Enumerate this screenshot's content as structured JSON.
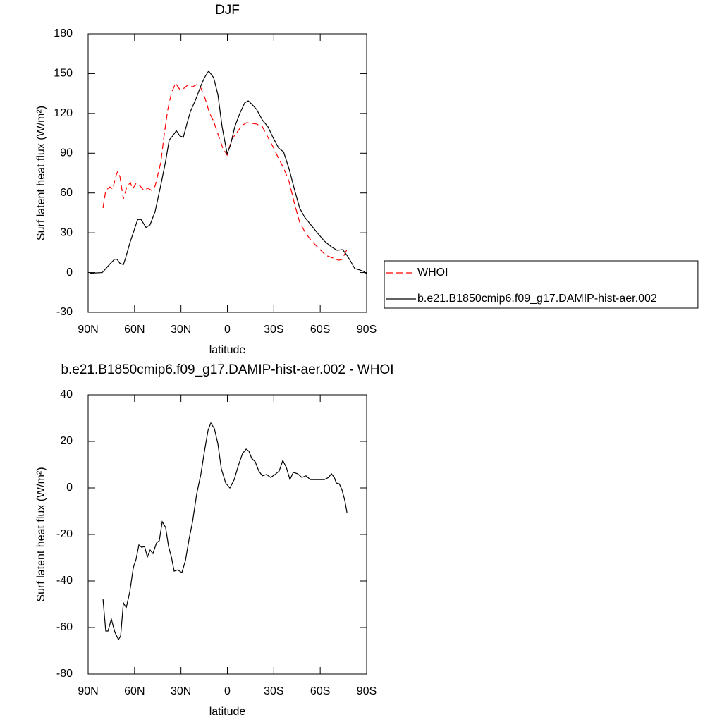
{
  "chart_data": [
    {
      "type": "line",
      "title": "DJF",
      "xlabel": "latitude",
      "ylabel": "Surf latent heat flux (W/m²)",
      "xlim": [
        90,
        -90
      ],
      "xticks": [
        {
          "value": 90,
          "label": "90N"
        },
        {
          "value": 60,
          "label": "60N"
        },
        {
          "value": 30,
          "label": "30N"
        },
        0,
        {
          "value": -30,
          "label": "30S"
        },
        {
          "value": -60,
          "label": "60S"
        },
        {
          "value": -90,
          "label": "90S"
        }
      ],
      "ylim": [
        -30,
        180
      ],
      "yticks": [
        -30,
        0,
        30,
        60,
        90,
        120,
        150,
        180
      ],
      "legend": "right",
      "series": [
        {
          "name": "WHOI",
          "color": "#ff0000",
          "style": "dashed",
          "x": [
            80.4,
            78.6,
            75.9,
            74,
            72.2,
            70.9,
            69.5,
            67.2,
            65,
            62.7,
            61.3,
            59,
            56.7,
            54,
            51.3,
            49,
            46.7,
            43,
            40.8,
            38.5,
            36.2,
            33.5,
            30.7,
            28,
            25.3,
            22.5,
            19.8,
            17.1,
            14.3,
            11.6,
            8.9,
            6.1,
            3,
            0.2,
            -2.9,
            -6.2,
            -9.4,
            -12.6,
            -15.7,
            -18.9,
            -22.6,
            -26.2,
            -29.9,
            -33.1,
            -36.3,
            -39.9,
            -43.5,
            -46.7,
            -50.4,
            -54.5,
            -59,
            -63.6,
            -68.2,
            -71.8,
            -74.1,
            -77.3
          ],
          "values": [
            48.7,
            62,
            64.6,
            63,
            72.6,
            76.3,
            72.6,
            55.6,
            64.6,
            68,
            63,
            67.3,
            65.7,
            62,
            63.6,
            62,
            65.2,
            83.2,
            104.5,
            123,
            135.3,
            142.8,
            138,
            139,
            141.7,
            140,
            141.7,
            139,
            131,
            120.5,
            114,
            104.5,
            93.9,
            88.6,
            100.8,
            105.6,
            110.9,
            113,
            112.5,
            112,
            110,
            102,
            94,
            86,
            79,
            68.4,
            51.3,
            38,
            30,
            23.7,
            18.4,
            13,
            11,
            9.3,
            9.9,
            17.3
          ]
        },
        {
          "name": "b.e21.B1850cmip6.f09_g17.DAMIP-hist-aer.002",
          "color": "#000000",
          "style": "solid",
          "x": [
            88.6,
            80.9,
            76.3,
            73,
            71.3,
            69.5,
            67.2,
            65.8,
            63.1,
            58,
            55.8,
            52.6,
            50,
            46.7,
            43,
            39.9,
            37.6,
            35.3,
            33,
            30.7,
            28.5,
            26.2,
            23.9,
            20.3,
            17.1,
            14.8,
            12.1,
            8.9,
            6.1,
            3.4,
            0.2,
            -2.1,
            -4.8,
            -8,
            -11.2,
            -13.5,
            -15.7,
            -18.9,
            -22.6,
            -26.2,
            -29.4,
            -33.1,
            -36.3,
            -39.9,
            -43.5,
            -46.7,
            -49.9,
            -53.6,
            -58.1,
            -62.7,
            -67.2,
            -70.9,
            -74.5,
            -77.3,
            -79.5,
            -82.3,
            -85.5,
            -88.2,
            -90
          ],
          "values": [
            -0.5,
            0,
            6,
            10,
            10,
            7,
            6,
            11,
            22,
            40,
            40,
            34,
            36,
            46,
            66,
            84,
            100,
            103,
            107,
            103,
            102,
            112,
            121.5,
            131,
            141,
            147,
            152,
            147,
            134,
            110,
            89.6,
            96.5,
            110,
            120,
            128,
            129.5,
            127,
            123,
            115,
            110,
            102,
            94,
            91,
            78,
            62,
            48.7,
            41.8,
            36.5,
            30,
            23.7,
            19.4,
            16.8,
            17.3,
            13,
            8.8,
            3,
            2,
            0.8,
            -0.8
          ]
        }
      ]
    },
    {
      "type": "line",
      "title": "b.e21.B1850cmip6.f09_g17.DAMIP-hist-aer.002 - WHOI",
      "xlabel": "latitude",
      "ylabel": "Surf latent heat flux (W/m²)",
      "xlim": [
        90,
        -90
      ],
      "xticks": [
        {
          "value": 90,
          "label": "90N"
        },
        {
          "value": 60,
          "label": "60N"
        },
        {
          "value": 30,
          "label": "30N"
        },
        0,
        {
          "value": -30,
          "label": "30S"
        },
        {
          "value": -60,
          "label": "60S"
        },
        {
          "value": -90,
          "label": "90S"
        }
      ],
      "ylim": [
        -80,
        40
      ],
      "yticks": [
        -80,
        -60,
        -40,
        -20,
        0,
        20,
        40
      ],
      "series": [
        {
          "color": "#000000",
          "style": "solid",
          "x": [
            80.4,
            78.6,
            77.2,
            75,
            72.7,
            70.4,
            69,
            67.2,
            65.4,
            63.1,
            60.8,
            59,
            57.2,
            55.4,
            53.5,
            51.7,
            49.9,
            48.1,
            45.8,
            44,
            42.1,
            39.9,
            38,
            36.2,
            34.4,
            32.1,
            29.4,
            27.1,
            24.8,
            22.5,
            19.8,
            17.1,
            14.8,
            12.5,
            10.7,
            8.4,
            6.1,
            3.9,
            1.1,
            -1.6,
            -4.4,
            -7.1,
            -9.8,
            -12.1,
            -13.9,
            -15.7,
            -18,
            -20.3,
            -22.6,
            -25.3,
            -28,
            -30.8,
            -33.5,
            -35.8,
            -38.1,
            -40.4,
            -42.6,
            -45.4,
            -48.1,
            -50.8,
            -53.6,
            -58.1,
            -62.7,
            -65.4,
            -67.2,
            -69.1,
            -70.4,
            -72.3,
            -74.1,
            -75.9,
            -77.3
          ],
          "values": [
            -47.9,
            -61.5,
            -61.5,
            -56.4,
            -62.1,
            -65.2,
            -63.6,
            -49.4,
            -51.5,
            -44.8,
            -34.2,
            -30.6,
            -24.5,
            -25.5,
            -25.2,
            -29.7,
            -26.7,
            -28.2,
            -23.6,
            -22.7,
            -14.5,
            -17,
            -25.2,
            -29.7,
            -35.8,
            -35.2,
            -36.4,
            -31.2,
            -22.1,
            -14.5,
            -2.4,
            6.1,
            15.8,
            24.8,
            27.9,
            25.5,
            18.8,
            8.2,
            2.1,
            0,
            3.6,
            9.7,
            14.8,
            16.7,
            15.8,
            12.7,
            11.2,
            7.3,
            5.2,
            5.8,
            4.5,
            5.8,
            7.3,
            11.8,
            8.8,
            3.6,
            6.7,
            6.1,
            4.5,
            5.2,
            3.6,
            3.6,
            3.6,
            4.5,
            6.1,
            4.5,
            2.1,
            1.8,
            -0.9,
            -5.5,
            -10.6
          ]
        }
      ]
    }
  ]
}
